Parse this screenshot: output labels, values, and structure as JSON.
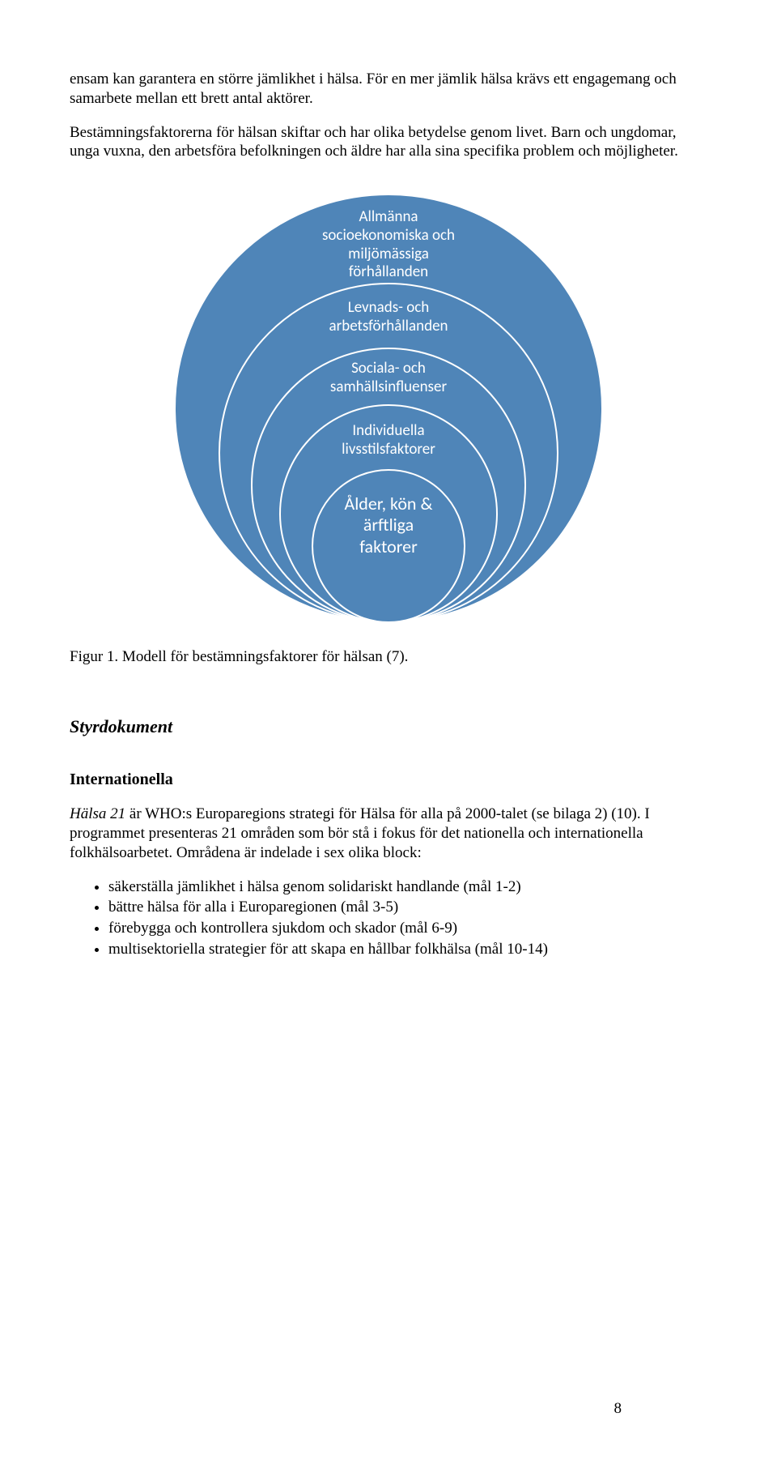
{
  "para1": "ensam kan garantera en större jämlikhet i hälsa. För en mer jämlik hälsa krävs ett engagemang och samarbete mellan ett brett antal aktörer.",
  "para2": "Bestämningsfaktorerna för hälsan skiftar och har olika betydelse genom livet. Barn och ungdomar, unga vuxna, den arbetsföra befolkningen och äldre har alla sina specifika problem och möjligheter.",
  "diagram": {
    "background": "#ffffff",
    "ring_color": "#4f85b8",
    "ring_border": "#ffffff",
    "text_color": "#ffffff",
    "rings": [
      {
        "d": 530,
        "label": "Allmänna\nsocioekonomiska och\nmiljömässiga\nförhållanden"
      },
      {
        "d": 420,
        "label": "Levnads- och\narbetsförhållanden"
      },
      {
        "d": 340,
        "label": "Sociala- och\nsamhällsinfluenser"
      },
      {
        "d": 270,
        "label": "Individuella\nlivsstilsfaktorer"
      },
      {
        "d": 190,
        "label": "Ålder, kön &\närftliga\nfaktorer"
      }
    ]
  },
  "fig_caption": "Figur 1. Modell för bestämningsfaktorer för hälsan (7).",
  "section_heading": "Styrdokument",
  "subsection_heading": "Internationella",
  "para3_pre": "Hälsa 21",
  "para3_rest": " är WHO:s Europaregions strategi för Hälsa för alla på 2000-talet (se bilaga 2) (10). I programmet presenteras 21 områden som bör stå i fokus för det nationella och internationella folkhälsoarbetet. Områdena är indelade i sex olika block:",
  "bullets": [
    "säkerställa jämlikhet i hälsa genom solidariskt handlande (mål 1-2)",
    "bättre hälsa för alla i Europaregionen (mål 3-5)",
    "förebygga och kontrollera sjukdom och skador (mål 6-9)",
    "multisektoriella strategier för att skapa en hållbar folkhälsa (mål 10-14)"
  ],
  "page_number": "8"
}
